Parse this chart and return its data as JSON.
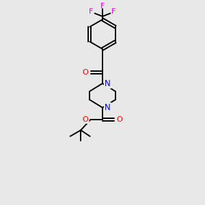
{
  "background_color": "#e8e8e8",
  "bond_color": "#000000",
  "nitrogen_color": "#0000ee",
  "oxygen_color": "#ee0000",
  "fluorine_color": "#ee00ee",
  "figsize": [
    3.0,
    3.0
  ],
  "dpi": 100,
  "xlim": [
    0,
    10
  ],
  "ylim": [
    0,
    10
  ]
}
